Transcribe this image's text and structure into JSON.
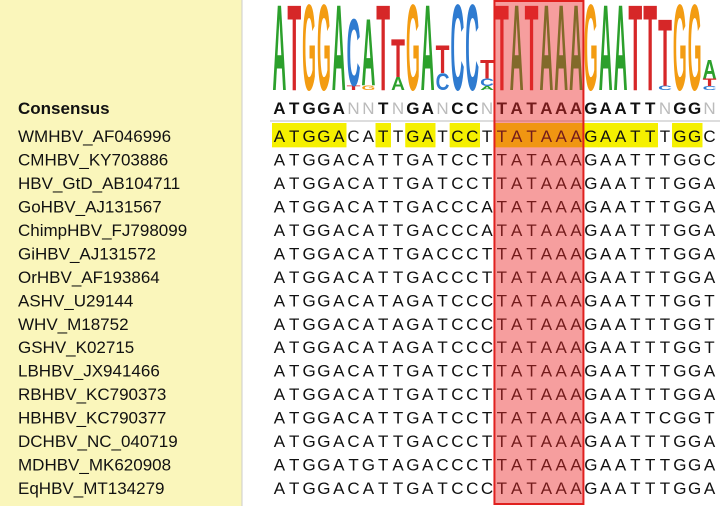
{
  "alignment": {
    "consensus_label": "Consensus",
    "consensus": "ATGGANNTNGANCCNTATAAAGAATTNGGN",
    "base_colors": {
      "A": "#2ca02c",
      "T": "#d62728",
      "G": "#f39c12",
      "C": "#2f7bd0"
    },
    "rows": [
      {
        "name": "WMHBV_AF046996",
        "sequence": "ATGGACATTGATCCTTATAAAGAATTTGGC"
      },
      {
        "name": "CMHBV_KY703886",
        "sequence": "ATGGACATTGATCCTTATAAAGAATTTGGC"
      },
      {
        "name": "HBV_GtD_AB104711",
        "sequence": "ATGGACATTGATCCTTATAAAGAATTTGGA"
      },
      {
        "name": "GoHBV_AJ131567",
        "sequence": "ATGGACATTGACCCATATAAAGAATTTGGA"
      },
      {
        "name": "ChimpHBV_FJ798099",
        "sequence": "ATGGACATTGACCCATATAAAGAATTTGGA"
      },
      {
        "name": "GiHBV_AJ131572",
        "sequence": "ATGGACATTGACCCTTATAAAGAATTTGGA"
      },
      {
        "name": "OrHBV_AF193864",
        "sequence": "ATGGACATTGACCCTTATAAAGAATTTGGA"
      },
      {
        "name": "ASHV_U29144",
        "sequence": "ATGGACATAGATCCCTATAAAGAATTTGGT"
      },
      {
        "name": "WHV_M18752",
        "sequence": "ATGGACATAGATCCCTATAAAGAATTTGGT"
      },
      {
        "name": "GSHV_K02715",
        "sequence": "ATGGACATAGATCCCTATAAAGAATTTGGT"
      },
      {
        "name": "LBHBV_JX941466",
        "sequence": "ATGGACATTGATCCTTATAAAGAATTTGGA"
      },
      {
        "name": "RBHBV_KC790373",
        "sequence": "ATGGACATTGATCCTTATAAAGAATTTGGA"
      },
      {
        "name": "HBHBV_KC790377",
        "sequence": "ATGGACATTGATCCTTATAAAGAATTCGGT"
      },
      {
        "name": "DCHBV_NC_040719",
        "sequence": "ATGGACATTGACCCTTATAAAGAATTTGGA"
      },
      {
        "name": "MDHBV_MK620908",
        "sequence": "ATGGATGTAGACCCTTATAAAGAATTTGGA"
      },
      {
        "name": "EqHBV_MT134279",
        "sequence": "ATGGACATTGATCCCTATAAAGAATTTGGA"
      }
    ]
  }
}
